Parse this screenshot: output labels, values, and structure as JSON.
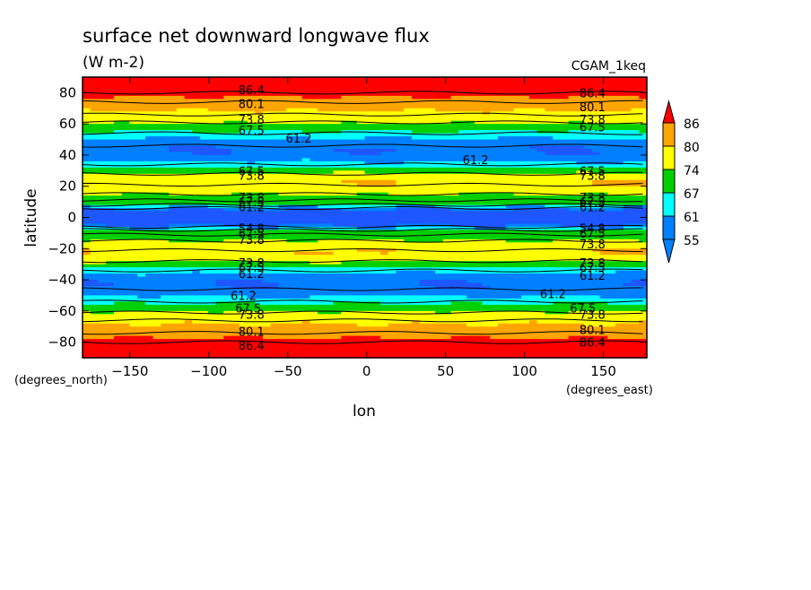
{
  "chart_data": {
    "type": "heatmap",
    "title": "surface net downward longwave flux",
    "subtitle": "(W m-2)",
    "case_label": "CGAM_1keq",
    "xlabel": "lon",
    "ylabel": "latitude",
    "x_unit": "(degrees_east)",
    "y_unit": "(degrees_north)",
    "xlim": [
      -180,
      177.5
    ],
    "ylim": [
      -90,
      90
    ],
    "x_ticks": [
      -150,
      -100,
      -50,
      0,
      50,
      100,
      150
    ],
    "y_ticks": [
      -80,
      -60,
      -40,
      -20,
      0,
      20,
      40,
      60,
      80
    ],
    "legend": {
      "placement": "right",
      "levels": [
        86,
        80,
        74,
        67,
        61,
        55
      ],
      "colors": [
        "#ff0000",
        "#ffa500",
        "#ffff00",
        "#00d000",
        "#00ffff",
        "#0080ff"
      ],
      "under_color": "#1e56ff",
      "over_color": "#ff0000"
    },
    "contour_labels": [
      {
        "text": "86.4",
        "lon": -73,
        "lat": 82
      },
      {
        "text": "80.1",
        "lon": -73,
        "lat": 73
      },
      {
        "text": "73.8",
        "lon": -73,
        "lat": 63
      },
      {
        "text": "67.5",
        "lon": -73,
        "lat": 56
      },
      {
        "text": "61.2",
        "lon": -43,
        "lat": 51
      },
      {
        "text": "86.4",
        "lon": 143,
        "lat": 80
      },
      {
        "text": "80.1",
        "lon": 143,
        "lat": 71
      },
      {
        "text": "73.8",
        "lon": 143,
        "lat": 63
      },
      {
        "text": "67.5",
        "lon": 143,
        "lat": 58
      },
      {
        "text": "61.2",
        "lon": 69,
        "lat": 37
      },
      {
        "text": "67.5",
        "lon": -73,
        "lat": 30
      },
      {
        "text": "73.8",
        "lon": -73,
        "lat": 27
      },
      {
        "text": "67.5",
        "lon": 143,
        "lat": 30
      },
      {
        "text": "73.8",
        "lon": 143,
        "lat": 27
      },
      {
        "text": "73.8",
        "lon": -73,
        "lat": 13
      },
      {
        "text": "67.5",
        "lon": -73,
        "lat": 10
      },
      {
        "text": "61.2",
        "lon": -73,
        "lat": 7
      },
      {
        "text": "73.8",
        "lon": 143,
        "lat": 13
      },
      {
        "text": "67.5",
        "lon": 143,
        "lat": 10
      },
      {
        "text": "61.2",
        "lon": 143,
        "lat": 7
      },
      {
        "text": "54.8",
        "lon": -73,
        "lat": -7
      },
      {
        "text": "67.5",
        "lon": -73,
        "lat": -10
      },
      {
        "text": "73.8",
        "lon": -73,
        "lat": -14
      },
      {
        "text": "54.8",
        "lon": 143,
        "lat": -7
      },
      {
        "text": "67.5",
        "lon": 143,
        "lat": -10
      },
      {
        "text": "73.8",
        "lon": 143,
        "lat": -17
      },
      {
        "text": "73.8",
        "lon": -73,
        "lat": -29
      },
      {
        "text": "67.5",
        "lon": -73,
        "lat": -32
      },
      {
        "text": "61.2",
        "lon": -73,
        "lat": -36
      },
      {
        "text": "73.8",
        "lon": 143,
        "lat": -29
      },
      {
        "text": "67.5",
        "lon": 143,
        "lat": -32
      },
      {
        "text": "61.2",
        "lon": 143,
        "lat": -37
      },
      {
        "text": "61.2",
        "lon": -78,
        "lat": -50
      },
      {
        "text": "61.2",
        "lon": 118,
        "lat": -49
      },
      {
        "text": "67.5",
        "lon": -75,
        "lat": -58
      },
      {
        "text": "73.8",
        "lon": -73,
        "lat": -62
      },
      {
        "text": "80.1",
        "lon": -73,
        "lat": -73
      },
      {
        "text": "86.4",
        "lon": -73,
        "lat": -82
      },
      {
        "text": "67.5",
        "lon": 137,
        "lat": -58
      },
      {
        "text": "73.8",
        "lon": 143,
        "lat": -62
      },
      {
        "text": "80.1",
        "lon": 143,
        "lat": -72
      },
      {
        "text": "86.4",
        "lon": 143,
        "lat": -80
      }
    ]
  }
}
